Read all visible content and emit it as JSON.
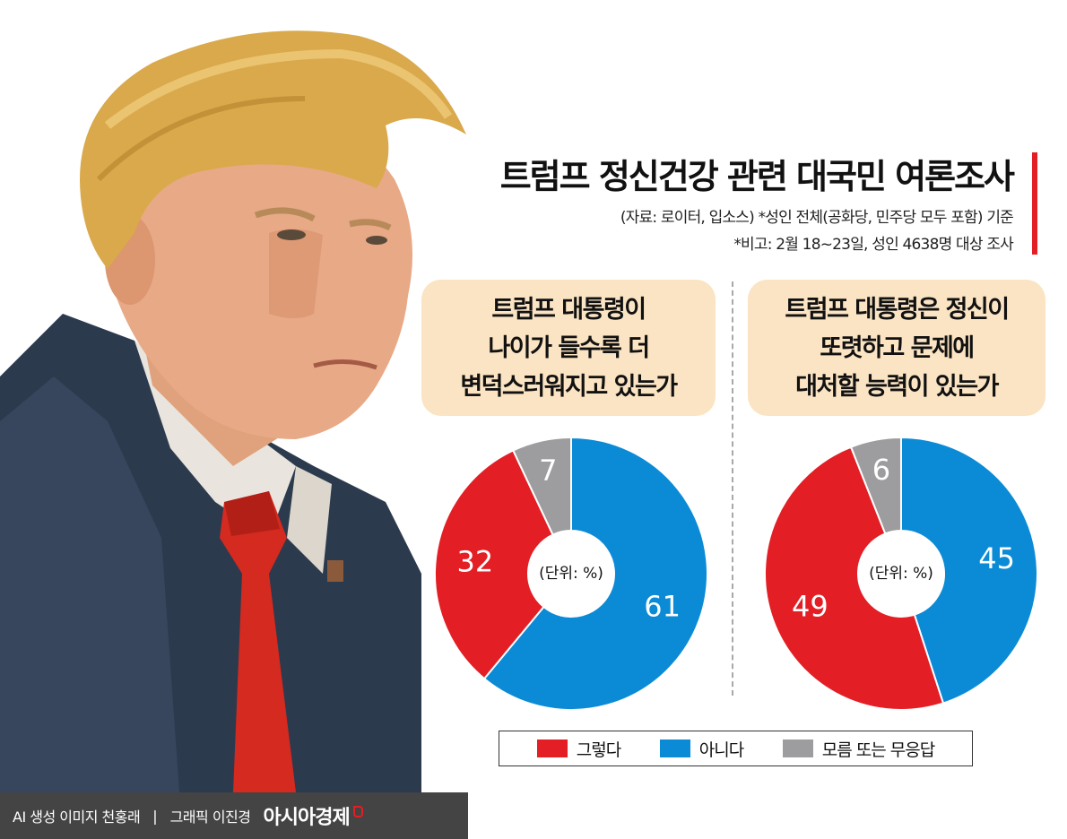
{
  "title": "트럼프 정신건강 관련 대국민 여론조사",
  "source_note": "(자료: 로이터, 입소스)  *성인 전체(공화당, 민주당 모두 포함) 기준",
  "survey_note": "*비고: 2월 18~23일, 성인 4638명 대상 조사",
  "colors": {
    "yes": "#e31e24",
    "no": "#0b8bd6",
    "unknown": "#9d9d9f",
    "question_bg": "#fbe4c3",
    "accent": "#e31e24"
  },
  "chart_data": [
    {
      "type": "pie",
      "question_lines": [
        "트럼프 대통령이",
        "나이가 들수록 더",
        "변덕스러워지고 있는가"
      ],
      "unit_label": "(단위: %)",
      "categories": [
        "그렇다",
        "아니다",
        "모름 또는 무응답"
      ],
      "values": [
        32,
        61,
        7
      ]
    },
    {
      "type": "pie",
      "question_lines": [
        "트럼프 대통령은 정신이",
        "또렷하고 문제에",
        "대처할 능력이 있는가"
      ],
      "unit_label": "(단위: %)",
      "categories": [
        "그렇다",
        "아니다",
        "모름 또는 무응답"
      ],
      "values": [
        49,
        45,
        6
      ]
    }
  ],
  "legend": [
    {
      "label": "그렇다",
      "color_key": "yes"
    },
    {
      "label": "아니다",
      "color_key": "no"
    },
    {
      "label": "모름 또는 무응답",
      "color_key": "unknown"
    }
  ],
  "credit": {
    "image_credit": "AI 생성 이미지 천홍래",
    "separator": "|",
    "graphic_credit": "그래픽 이진경",
    "brand": "아시아경제"
  }
}
